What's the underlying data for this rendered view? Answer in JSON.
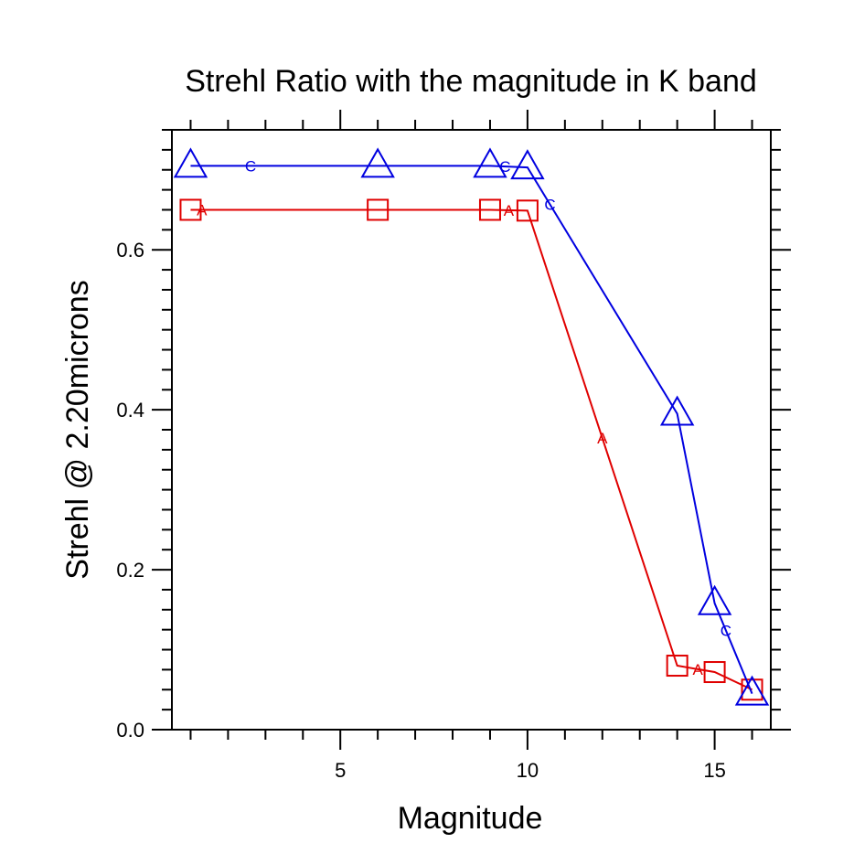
{
  "chart_data": {
    "type": "line",
    "title": "Strehl Ratio with the magnitude in K band",
    "xlabel": "Magnitude",
    "ylabel": "Strehl @ 2.20microns",
    "xlim": [
      0.5,
      16.5
    ],
    "ylim": [
      0.0,
      0.75
    ],
    "x_ticks": [
      5,
      10,
      15
    ],
    "x_tick_labels": [
      "5",
      "10",
      "15"
    ],
    "y_ticks": [
      0.0,
      0.2,
      0.4,
      0.6
    ],
    "y_tick_labels": [
      "0.0",
      "0.2",
      "0.4",
      "0.6"
    ],
    "grid": false,
    "series": [
      {
        "color": "#e00000",
        "marker": "square",
        "line_letter": "A",
        "x": [
          1,
          6,
          9,
          10,
          14,
          15,
          16
        ],
        "y": [
          0.65,
          0.65,
          0.65,
          0.649,
          0.08,
          0.072,
          0.05
        ]
      },
      {
        "color": "#0000e0",
        "marker": "triangle",
        "line_letter": "C",
        "x": [
          1,
          6,
          9,
          10,
          14,
          15,
          16
        ],
        "y": [
          0.705,
          0.705,
          0.705,
          0.703,
          0.395,
          0.158,
          0.045
        ]
      }
    ]
  }
}
